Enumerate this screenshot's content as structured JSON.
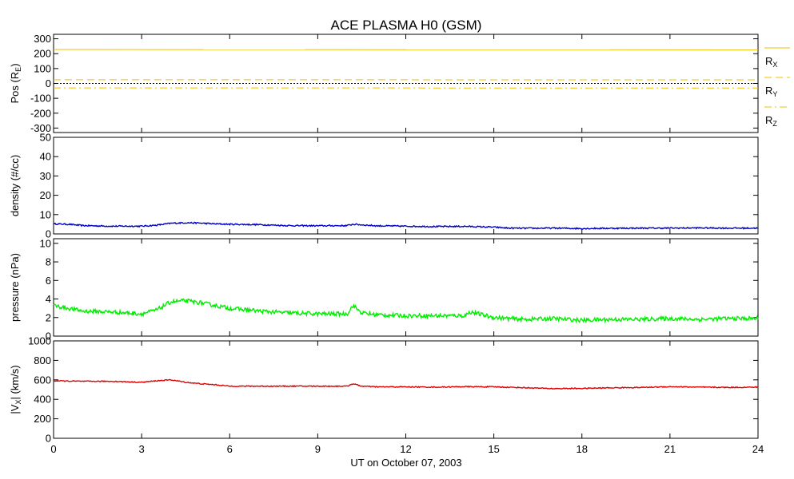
{
  "title": "ACE PLASMA H0 (GSM)",
  "xlabel": "UT on October 07, 2003",
  "colors": {
    "position": "#f0c000",
    "density": "#0000cc",
    "pressure": "#00ee00",
    "velocity": "#dd0000",
    "zero_line": "#000000"
  },
  "chart_data": [
    {
      "type": "line",
      "panel": "position",
      "ylabel": "Pos (RE)",
      "ylabel_main": "Pos (R",
      "ylabel_sub": "E",
      "ylabel_tail": ")",
      "xlim": [
        0,
        24
      ],
      "ylim": [
        -330,
        330
      ],
      "yticks": [
        "300",
        "200",
        "100",
        "0",
        "-100",
        "-200",
        "-300"
      ],
      "xticks": [
        0,
        3,
        6,
        9,
        12,
        15,
        18,
        21,
        24
      ],
      "zero_line": true,
      "legend_placement": "right",
      "series": [
        {
          "name": "RX",
          "base": "R",
          "sub": "X",
          "style": "solid",
          "x": [
            0,
            24
          ],
          "values": [
            228,
            226
          ]
        },
        {
          "name": "RY",
          "base": "R",
          "sub": "Y",
          "style": "dashed",
          "x": [
            0,
            24
          ],
          "values": [
            25,
            24
          ]
        },
        {
          "name": "RZ",
          "base": "R",
          "sub": "Z",
          "style": "dashdot",
          "x": [
            0,
            24
          ],
          "values": [
            -30,
            -31
          ]
        }
      ]
    },
    {
      "type": "line",
      "panel": "density",
      "ylabel": "density (#/cc)",
      "xlim": [
        0,
        24
      ],
      "ylim": [
        0,
        50
      ],
      "yticks": [
        "50",
        "40",
        "30",
        "20",
        "10",
        "0"
      ],
      "xticks": [
        0,
        3,
        6,
        9,
        12,
        15,
        18,
        21,
        24
      ],
      "series": [
        {
          "name": "density",
          "noise": 0.35,
          "x": [
            0,
            0.5,
            1,
            2,
            3,
            3.5,
            4,
            4.5,
            5,
            5.5,
            6,
            7,
            8,
            9,
            10,
            10.2,
            11,
            12,
            13,
            14,
            15,
            15.5,
            16,
            17,
            18,
            19,
            20,
            21,
            22,
            23,
            24
          ],
          "values": [
            5.2,
            5.0,
            4.3,
            4.0,
            4.0,
            4.5,
            5.5,
            5.8,
            5.6,
            5.2,
            5.0,
            4.8,
            4.3,
            4.2,
            4.3,
            5.0,
            4.2,
            4.0,
            3.8,
            3.9,
            3.5,
            3.0,
            2.9,
            3.0,
            2.8,
            2.9,
            3.0,
            3.0,
            3.1,
            3.0,
            3.0
          ]
        }
      ]
    },
    {
      "type": "line",
      "panel": "pressure",
      "ylabel": "pressure (nPa)",
      "xlim": [
        0,
        24
      ],
      "ylim": [
        0,
        10.5
      ],
      "yticks": [
        "10",
        "8",
        "6",
        "4",
        "2",
        "0"
      ],
      "xticks": [
        0,
        3,
        6,
        9,
        12,
        15,
        18,
        21,
        24
      ],
      "series": [
        {
          "name": "pressure",
          "noise": 0.22,
          "x": [
            0,
            0.5,
            1,
            2,
            3,
            3.5,
            4,
            4.5,
            5,
            5.5,
            6,
            7,
            8,
            9,
            10,
            10.2,
            10.5,
            11,
            12,
            13,
            14,
            14.2,
            15,
            16,
            17,
            18,
            19,
            20,
            21,
            22,
            23,
            24
          ],
          "values": [
            3.3,
            3.0,
            2.7,
            2.6,
            2.4,
            2.8,
            3.7,
            3.8,
            3.6,
            3.3,
            3.0,
            2.7,
            2.5,
            2.4,
            2.4,
            3.3,
            2.5,
            2.3,
            2.2,
            2.2,
            2.2,
            2.6,
            2.0,
            1.8,
            1.9,
            1.7,
            1.8,
            1.8,
            1.9,
            1.8,
            1.9,
            1.9
          ]
        }
      ]
    },
    {
      "type": "line",
      "panel": "velocity",
      "ylabel": "|VX| (km/s)",
      "ylabel_main": "|V",
      "ylabel_sub": "X",
      "ylabel_tail": "| (km/s)",
      "xlim": [
        0,
        24
      ],
      "ylim": [
        0,
        1000
      ],
      "yticks": [
        "1000",
        "800",
        "600",
        "400",
        "200",
        "0"
      ],
      "xticks": [
        0,
        3,
        6,
        9,
        12,
        15,
        18,
        21,
        24
      ],
      "series": [
        {
          "name": "Vx",
          "noise": 5,
          "x": [
            0,
            1,
            2,
            3,
            3.5,
            4,
            4.5,
            5,
            5.5,
            6,
            7,
            8,
            9,
            10,
            10.2,
            10.5,
            11,
            12,
            13,
            14,
            15,
            16,
            17,
            18,
            19,
            20,
            21,
            22,
            23,
            24
          ],
          "values": [
            590,
            585,
            585,
            575,
            590,
            600,
            575,
            560,
            550,
            535,
            535,
            535,
            535,
            535,
            560,
            535,
            528,
            528,
            525,
            530,
            528,
            520,
            510,
            512,
            518,
            522,
            530,
            525,
            522,
            525
          ]
        }
      ]
    }
  ]
}
